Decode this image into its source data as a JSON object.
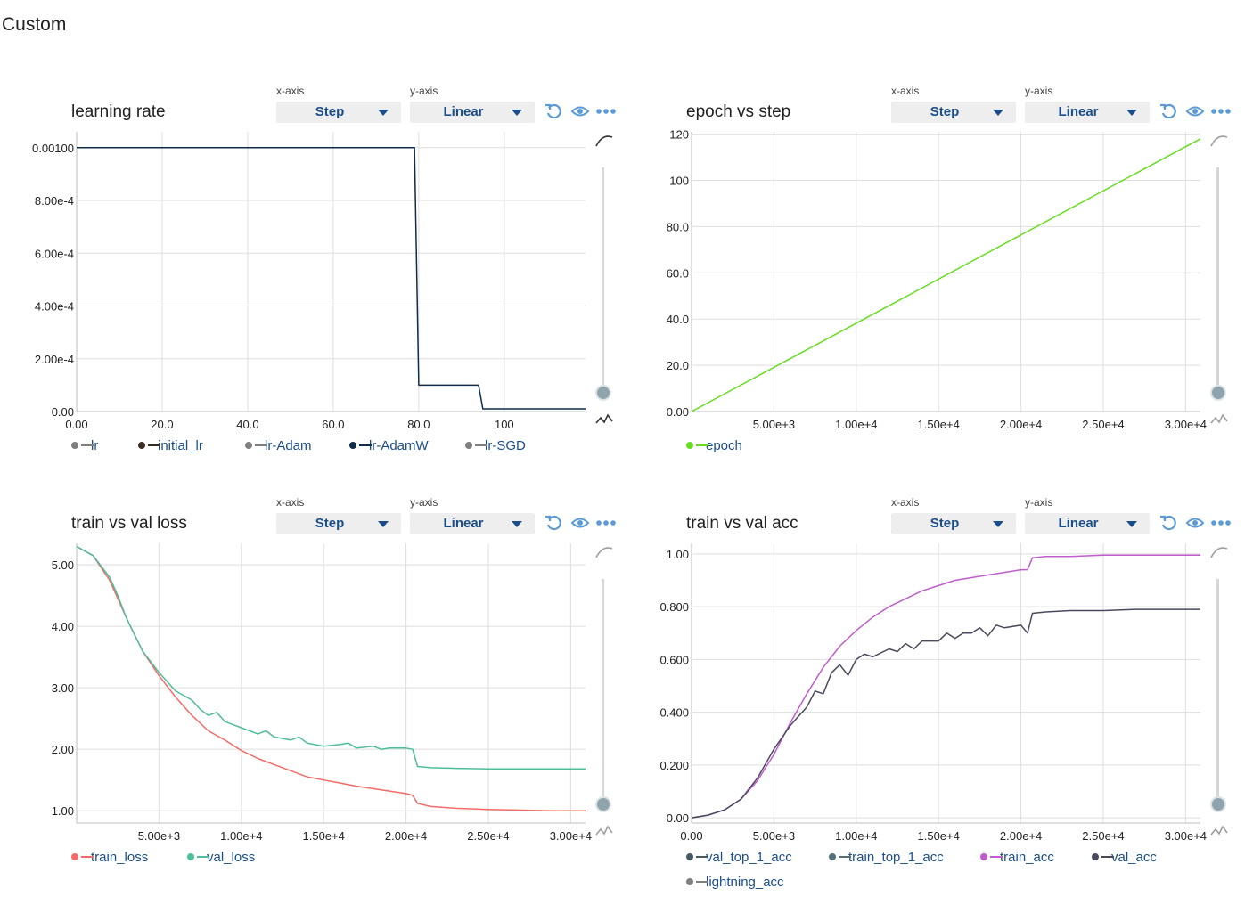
{
  "page": {
    "title": "Custom"
  },
  "controls": {
    "xaxis_label": "x-axis",
    "yaxis_label": "y-axis",
    "xaxis_value": "Step",
    "yaxis_value": "Linear"
  },
  "icons": [
    "reset-icon",
    "eye-icon",
    "more-icon",
    "smoothing-curve-icon",
    "outlier-icon"
  ],
  "charts": [
    {
      "title": "learning rate",
      "legend": [
        {
          "name": "lr",
          "color": "#7f7f7f"
        },
        {
          "name": "initial_lr",
          "color": "#3a2c24"
        },
        {
          "name": "lr-Adam",
          "color": "#7f7f7f"
        },
        {
          "name": "lr-AdamW",
          "color": "#0f2c4a"
        },
        {
          "name": "lr-SGD",
          "color": "#7f7f7f"
        }
      ]
    },
    {
      "title": "epoch vs step",
      "legend": [
        {
          "name": "epoch",
          "color": "#66dd22"
        }
      ]
    },
    {
      "title": "train vs val loss",
      "legend": [
        {
          "name": "train_loss",
          "color": "#f26b68"
        },
        {
          "name": "val_loss",
          "color": "#4dbd9a"
        }
      ]
    },
    {
      "title": "train vs val acc",
      "legend": [
        {
          "name": "val_top_1_acc",
          "color": "#455a64"
        },
        {
          "name": "train_top_1_acc",
          "color": "#546e7a"
        },
        {
          "name": "train_acc",
          "color": "#c05ccc"
        },
        {
          "name": "val_acc",
          "color": "#4a4a5e"
        },
        {
          "name": "lightning_acc",
          "color": "#7f7f7f"
        }
      ]
    }
  ],
  "chart_data": [
    {
      "type": "line",
      "title": "learning rate",
      "xlim": [
        0,
        119
      ],
      "ylim": [
        0,
        0.00106
      ],
      "x_ticks": [
        0,
        20,
        40,
        60,
        80,
        100
      ],
      "x_tick_labels": [
        "0.00",
        "20.0",
        "40.0",
        "60.0",
        "80.0",
        "100"
      ],
      "y_ticks": [
        0,
        0.0002,
        0.0004,
        0.0006,
        0.0008,
        0.001
      ],
      "y_tick_labels": [
        "0.00",
        "2.00e-4",
        "4.00e-4",
        "6.00e-4",
        "8.00e-4",
        "0.00100"
      ],
      "grid": true,
      "legend_position": "bottom",
      "series": [
        {
          "name": "lr-AdamW",
          "color": "#0f2c4a",
          "x": [
            0,
            79,
            80,
            94,
            95,
            119
          ],
          "y": [
            0.001,
            0.001,
            0.0001,
            0.0001,
            1e-05,
            1e-05
          ]
        }
      ]
    },
    {
      "type": "line",
      "title": "epoch vs step",
      "xlim": [
        0,
        30900
      ],
      "ylim": [
        0,
        121
      ],
      "x_ticks": [
        5000,
        10000,
        15000,
        20000,
        25000,
        30000
      ],
      "x_tick_labels": [
        "5.00e+3",
        "1.00e+4",
        "1.50e+4",
        "2.00e+4",
        "2.50e+4",
        "3.00e+4"
      ],
      "y_ticks": [
        0,
        20,
        40,
        60,
        80,
        100,
        120
      ],
      "y_tick_labels": [
        "0.00",
        "20.0",
        "40.0",
        "60.0",
        "80.0",
        "100",
        "120"
      ],
      "grid": true,
      "legend_position": "bottom",
      "series": [
        {
          "name": "epoch",
          "color": "#66dd22",
          "x": [
            0,
            30900
          ],
          "y": [
            0,
            118
          ]
        }
      ]
    },
    {
      "type": "line",
      "title": "train vs val loss",
      "xlim": [
        0,
        30900
      ],
      "ylim": [
        0.8,
        5.35
      ],
      "x_ticks": [
        5000,
        10000,
        15000,
        20000,
        25000,
        30000
      ],
      "x_tick_labels": [
        "5.00e+3",
        "1.00e+4",
        "1.50e+4",
        "2.00e+4",
        "2.50e+4",
        "3.00e+4"
      ],
      "y_ticks": [
        1,
        2,
        3,
        4,
        5
      ],
      "y_tick_labels": [
        "1.00",
        "2.00",
        "3.00",
        "4.00",
        "5.00"
      ],
      "grid": true,
      "legend_position": "bottom",
      "series": [
        {
          "name": "train_loss",
          "color": "#f26b68",
          "x": [
            0,
            1000,
            2000,
            2500,
            3000,
            4000,
            5000,
            6000,
            7000,
            8000,
            9000,
            10000,
            11000,
            12000,
            13000,
            14000,
            15000,
            16000,
            17000,
            18000,
            19000,
            20000,
            20400,
            20700,
            21500,
            23000,
            25000,
            27000,
            29000,
            30900
          ],
          "y": [
            5.3,
            5.15,
            4.75,
            4.45,
            4.15,
            3.6,
            3.2,
            2.85,
            2.55,
            2.3,
            2.15,
            1.98,
            1.85,
            1.75,
            1.65,
            1.55,
            1.5,
            1.45,
            1.4,
            1.36,
            1.32,
            1.28,
            1.25,
            1.12,
            1.07,
            1.04,
            1.02,
            1.01,
            1.0,
            1.0
          ]
        },
        {
          "name": "val_loss",
          "color": "#4dbd9a",
          "x": [
            0,
            1000,
            2000,
            2500,
            3000,
            4000,
            5000,
            6000,
            7000,
            7500,
            8000,
            8500,
            9000,
            9500,
            10000,
            11000,
            11500,
            12000,
            13000,
            13500,
            14000,
            15000,
            16000,
            16500,
            17000,
            18000,
            18500,
            19000,
            20000,
            20400,
            20700,
            21500,
            23000,
            25000,
            27000,
            29000,
            30900
          ],
          "y": [
            5.3,
            5.15,
            4.8,
            4.5,
            4.15,
            3.6,
            3.25,
            2.95,
            2.8,
            2.65,
            2.55,
            2.6,
            2.45,
            2.4,
            2.35,
            2.25,
            2.3,
            2.2,
            2.15,
            2.2,
            2.1,
            2.05,
            2.08,
            2.1,
            2.02,
            2.05,
            2.0,
            2.02,
            2.02,
            2.0,
            1.72,
            1.7,
            1.69,
            1.68,
            1.68,
            1.68,
            1.68
          ]
        }
      ]
    },
    {
      "type": "line",
      "title": "train vs val acc",
      "xlim": [
        0,
        30900
      ],
      "ylim": [
        -0.02,
        1.04
      ],
      "x_ticks": [
        0,
        5000,
        10000,
        15000,
        20000,
        25000,
        30000
      ],
      "x_tick_labels": [
        "0.00",
        "5.00e+3",
        "1.00e+4",
        "1.50e+4",
        "2.00e+4",
        "2.50e+4",
        "3.00e+4"
      ],
      "y_ticks": [
        0,
        0.2,
        0.4,
        0.6,
        0.8,
        1.0
      ],
      "y_tick_labels": [
        "0.00",
        "0.200",
        "0.400",
        "0.600",
        "0.800",
        "1.00"
      ],
      "grid": true,
      "legend_position": "bottom",
      "series": [
        {
          "name": "train_acc",
          "color": "#c05ccc",
          "x": [
            0,
            1000,
            2000,
            3000,
            4000,
            5000,
            6000,
            7000,
            8000,
            9000,
            10000,
            11000,
            12000,
            13000,
            14000,
            15000,
            16000,
            17000,
            18000,
            19000,
            20000,
            20400,
            20700,
            21500,
            23000,
            25000,
            27000,
            29000,
            30900
          ],
          "y": [
            0.0,
            0.01,
            0.03,
            0.07,
            0.14,
            0.24,
            0.36,
            0.47,
            0.57,
            0.65,
            0.71,
            0.76,
            0.8,
            0.83,
            0.86,
            0.88,
            0.9,
            0.91,
            0.92,
            0.93,
            0.94,
            0.94,
            0.985,
            0.99,
            0.99,
            0.995,
            0.995,
            0.995,
            0.995
          ]
        },
        {
          "name": "val_acc",
          "color": "#4a4a5e",
          "x": [
            0,
            1000,
            2000,
            3000,
            4000,
            5000,
            6000,
            7000,
            7500,
            8000,
            8500,
            9000,
            9500,
            10000,
            10500,
            11000,
            12000,
            12500,
            13000,
            13500,
            14000,
            15000,
            15500,
            16000,
            16500,
            17000,
            17500,
            18000,
            18500,
            19000,
            20000,
            20400,
            20700,
            21500,
            23000,
            25000,
            27000,
            29000,
            30900
          ],
          "y": [
            0.0,
            0.01,
            0.03,
            0.07,
            0.15,
            0.26,
            0.35,
            0.42,
            0.48,
            0.47,
            0.55,
            0.58,
            0.54,
            0.6,
            0.62,
            0.61,
            0.64,
            0.63,
            0.66,
            0.64,
            0.67,
            0.67,
            0.7,
            0.68,
            0.7,
            0.7,
            0.72,
            0.69,
            0.73,
            0.72,
            0.73,
            0.7,
            0.775,
            0.78,
            0.785,
            0.785,
            0.79,
            0.79,
            0.79
          ]
        }
      ]
    }
  ]
}
